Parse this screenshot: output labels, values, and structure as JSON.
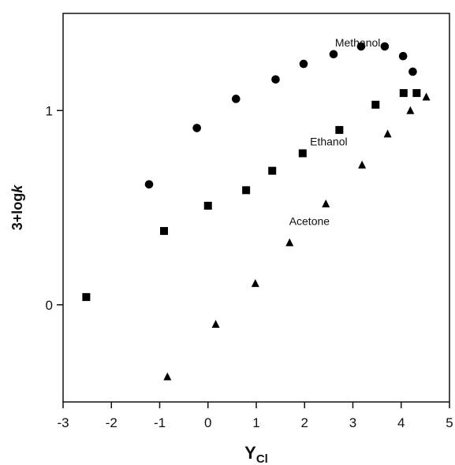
{
  "chart_data": {
    "type": "scatter",
    "title": "",
    "xlabel": "Y",
    "xlabel_subscript": "Cl",
    "ylabel_prefix": "3+log",
    "ylabel_italic": "k",
    "xlim": [
      -3,
      5
    ],
    "ylim": [
      -0.5,
      1.5
    ],
    "x_ticks": [
      -3,
      -2,
      -1,
      0,
      1,
      2,
      3,
      4,
      5
    ],
    "y_ticks": [
      0,
      1
    ],
    "grid": false,
    "legend": "none",
    "series": [
      {
        "name": "Methanol",
        "marker": "circle",
        "color": "#000000",
        "label_position": [
          3.1,
          1.33
        ],
        "points": [
          [
            -1.22,
            0.62
          ],
          [
            -0.23,
            0.91
          ],
          [
            0.58,
            1.06
          ],
          [
            1.4,
            1.16
          ],
          [
            1.98,
            1.24
          ],
          [
            2.6,
            1.29
          ],
          [
            3.17,
            1.33
          ],
          [
            3.66,
            1.33
          ],
          [
            4.04,
            1.28
          ],
          [
            4.24,
            1.2
          ]
        ]
      },
      {
        "name": "Ethanol",
        "marker": "square",
        "color": "#000000",
        "label_position": [
          2.5,
          0.82
        ],
        "points": [
          [
            -2.52,
            0.04
          ],
          [
            -0.91,
            0.38
          ],
          [
            0.0,
            0.51
          ],
          [
            0.79,
            0.59
          ],
          [
            1.33,
            0.69
          ],
          [
            1.96,
            0.78
          ],
          [
            2.72,
            0.9
          ],
          [
            3.47,
            1.03
          ],
          [
            4.05,
            1.09
          ],
          [
            4.32,
            1.09
          ]
        ]
      },
      {
        "name": "Acetone",
        "marker": "triangle",
        "color": "#000000",
        "label_position": [
          2.1,
          0.41
        ],
        "points": [
          [
            -0.84,
            -0.37
          ],
          [
            0.16,
            -0.1
          ],
          [
            0.98,
            0.11
          ],
          [
            1.69,
            0.32
          ],
          [
            2.44,
            0.52
          ],
          [
            3.19,
            0.72
          ],
          [
            3.72,
            0.88
          ],
          [
            4.19,
            1.0
          ],
          [
            4.52,
            1.07
          ]
        ]
      }
    ]
  }
}
